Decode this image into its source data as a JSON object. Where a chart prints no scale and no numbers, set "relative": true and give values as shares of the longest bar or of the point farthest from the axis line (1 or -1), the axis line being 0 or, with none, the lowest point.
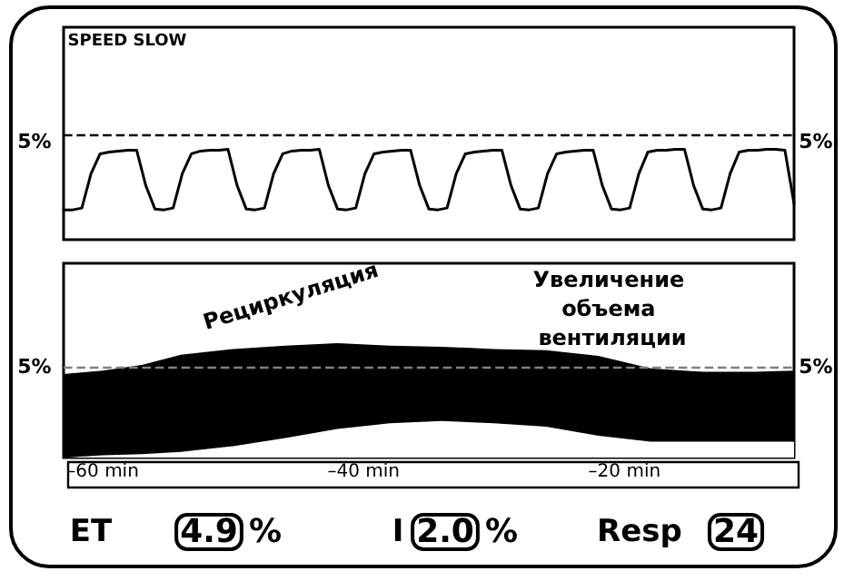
{
  "chart_data": [
    {
      "type": "line",
      "relative": true,
      "marker": "none",
      "line_style": "solid",
      "annotations": [
        "SPEED SLOW",
        "5%",
        "5%"
      ],
      "categories": [
        null,
        null,
        null,
        null,
        null,
        null,
        null,
        null,
        null,
        null,
        null,
        null,
        null,
        null,
        null,
        null,
        null,
        null,
        null,
        null,
        null,
        null,
        null,
        null,
        null,
        null,
        null,
        null,
        null,
        null,
        null,
        null,
        null,
        null,
        null,
        null,
        null,
        null,
        null,
        null,
        null,
        null,
        null,
        null,
        null,
        null,
        null,
        null,
        null,
        null,
        null,
        null,
        null,
        null,
        null,
        null,
        null,
        null,
        null,
        null,
        null,
        null,
        null,
        null,
        null,
        null,
        null,
        null,
        null,
        null,
        null,
        null,
        null,
        null,
        null,
        null,
        null,
        null,
        null,
        null,
        null
      ],
      "series": [
        {
          "color": "#000000",
          "values": [
            0.33,
            0.33,
            0.35,
            0.73,
            0.95,
            0.97,
            0.98,
            0.99,
            0.99,
            0.6,
            0.34,
            0.33,
            0.35,
            0.73,
            0.95,
            0.98,
            0.99,
            0.99,
            1.0,
            0.6,
            0.34,
            0.33,
            0.35,
            0.73,
            0.95,
            0.98,
            0.99,
            0.99,
            1.0,
            0.6,
            0.34,
            0.33,
            0.35,
            0.73,
            0.95,
            0.97,
            0.98,
            0.99,
            0.99,
            0.6,
            0.34,
            0.33,
            0.35,
            0.73,
            0.95,
            0.97,
            0.98,
            0.99,
            0.99,
            0.6,
            0.34,
            0.33,
            0.35,
            0.73,
            0.95,
            0.97,
            0.98,
            0.99,
            0.99,
            0.6,
            0.34,
            0.33,
            0.35,
            0.73,
            0.97,
            0.99,
            0.99,
            1.0,
            1.0,
            0.6,
            0.34,
            0.33,
            0.35,
            0.73,
            0.97,
            0.99,
            0.99,
            1.0,
            1.0,
            0.99,
            0.4
          ]
        }
      ],
      "ref_lines": [
        {
          "axis": "y",
          "value": 1.15,
          "line_style": "dashed"
        }
      ]
    },
    {
      "type": "area",
      "stacked": true,
      "relative": true,
      "annotations": [
        "Рециркуляция",
        "Увеличение объема вентиляции",
        "ET",
        "4.9",
        "%",
        "I",
        "2.0",
        "%",
        "Resp",
        "24",
        "5%",
        "5%"
      ],
      "xlim": [
        -63,
        -7
      ],
      "xticks": [
        {
          "value": -60,
          "label": "–60 min"
        },
        {
          "value": -40,
          "label": "–40 min"
        },
        {
          "value": -20,
          "label": "–20 min"
        }
      ],
      "x": [
        -63,
        -60,
        -57,
        -54,
        -50,
        -46,
        -42,
        -38,
        -34,
        -30,
        -26,
        -22,
        -18,
        -14,
        -10,
        -7
      ],
      "series": [
        {
          "color": "#ffffff",
          "values": [
            0,
            0.02,
            0.03,
            0.05,
            0.1,
            0.17,
            0.25,
            0.3,
            0.32,
            0.3,
            0.27,
            0.19,
            0.14,
            0.14,
            0.14,
            0.14
          ]
        },
        {
          "color": "#000000",
          "values": [
            0.73,
            0.74,
            0.78,
            0.85,
            0.85,
            0.81,
            0.75,
            0.68,
            0.65,
            0.65,
            0.67,
            0.7,
            0.64,
            0.61,
            0.61,
            0.62
          ]
        }
      ],
      "ref_lines": [
        {
          "axis": "y",
          "value": 0.79,
          "line_style": "dashed",
          "color": "#808080"
        }
      ]
    }
  ]
}
